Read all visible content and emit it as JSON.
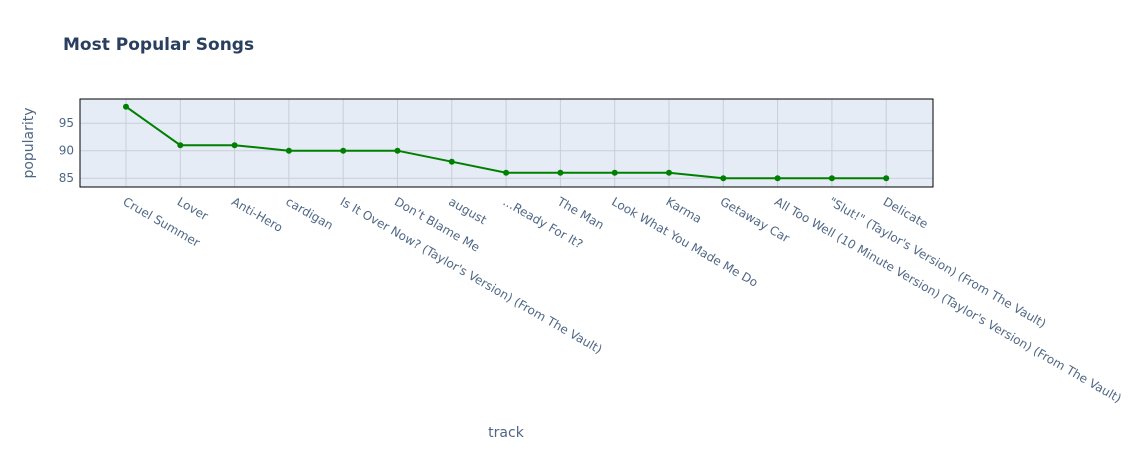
{
  "chart_data": {
    "type": "line",
    "title": "Most Popular Songs",
    "xlabel": "track",
    "ylabel": "popularity",
    "categories": [
      "Cruel Summer",
      "Lover",
      "Anti-Hero",
      "cardigan",
      "Is It Over Now? (Taylor's Version) (From The Vault)",
      "Don’t Blame Me",
      "august",
      "...Ready For It?",
      "The Man",
      "Look What You Made Me Do",
      "Karma",
      "Getaway Car",
      "All Too Well (10 Minute Version) (Taylor's Version) (From The Vault)",
      "\"Slut!\" (Taylor's Version) (From The Vault)",
      "Delicate"
    ],
    "values": [
      98,
      91,
      91,
      90,
      90,
      90,
      88,
      86,
      86,
      86,
      86,
      85,
      85,
      85,
      85
    ],
    "ylim": [
      83.4,
      99.4
    ],
    "yticks": [
      85,
      90,
      95
    ],
    "grid": true,
    "line_color": "#008000",
    "plot_bg": "#e5ecf6",
    "grid_color": "#c8cfda"
  }
}
